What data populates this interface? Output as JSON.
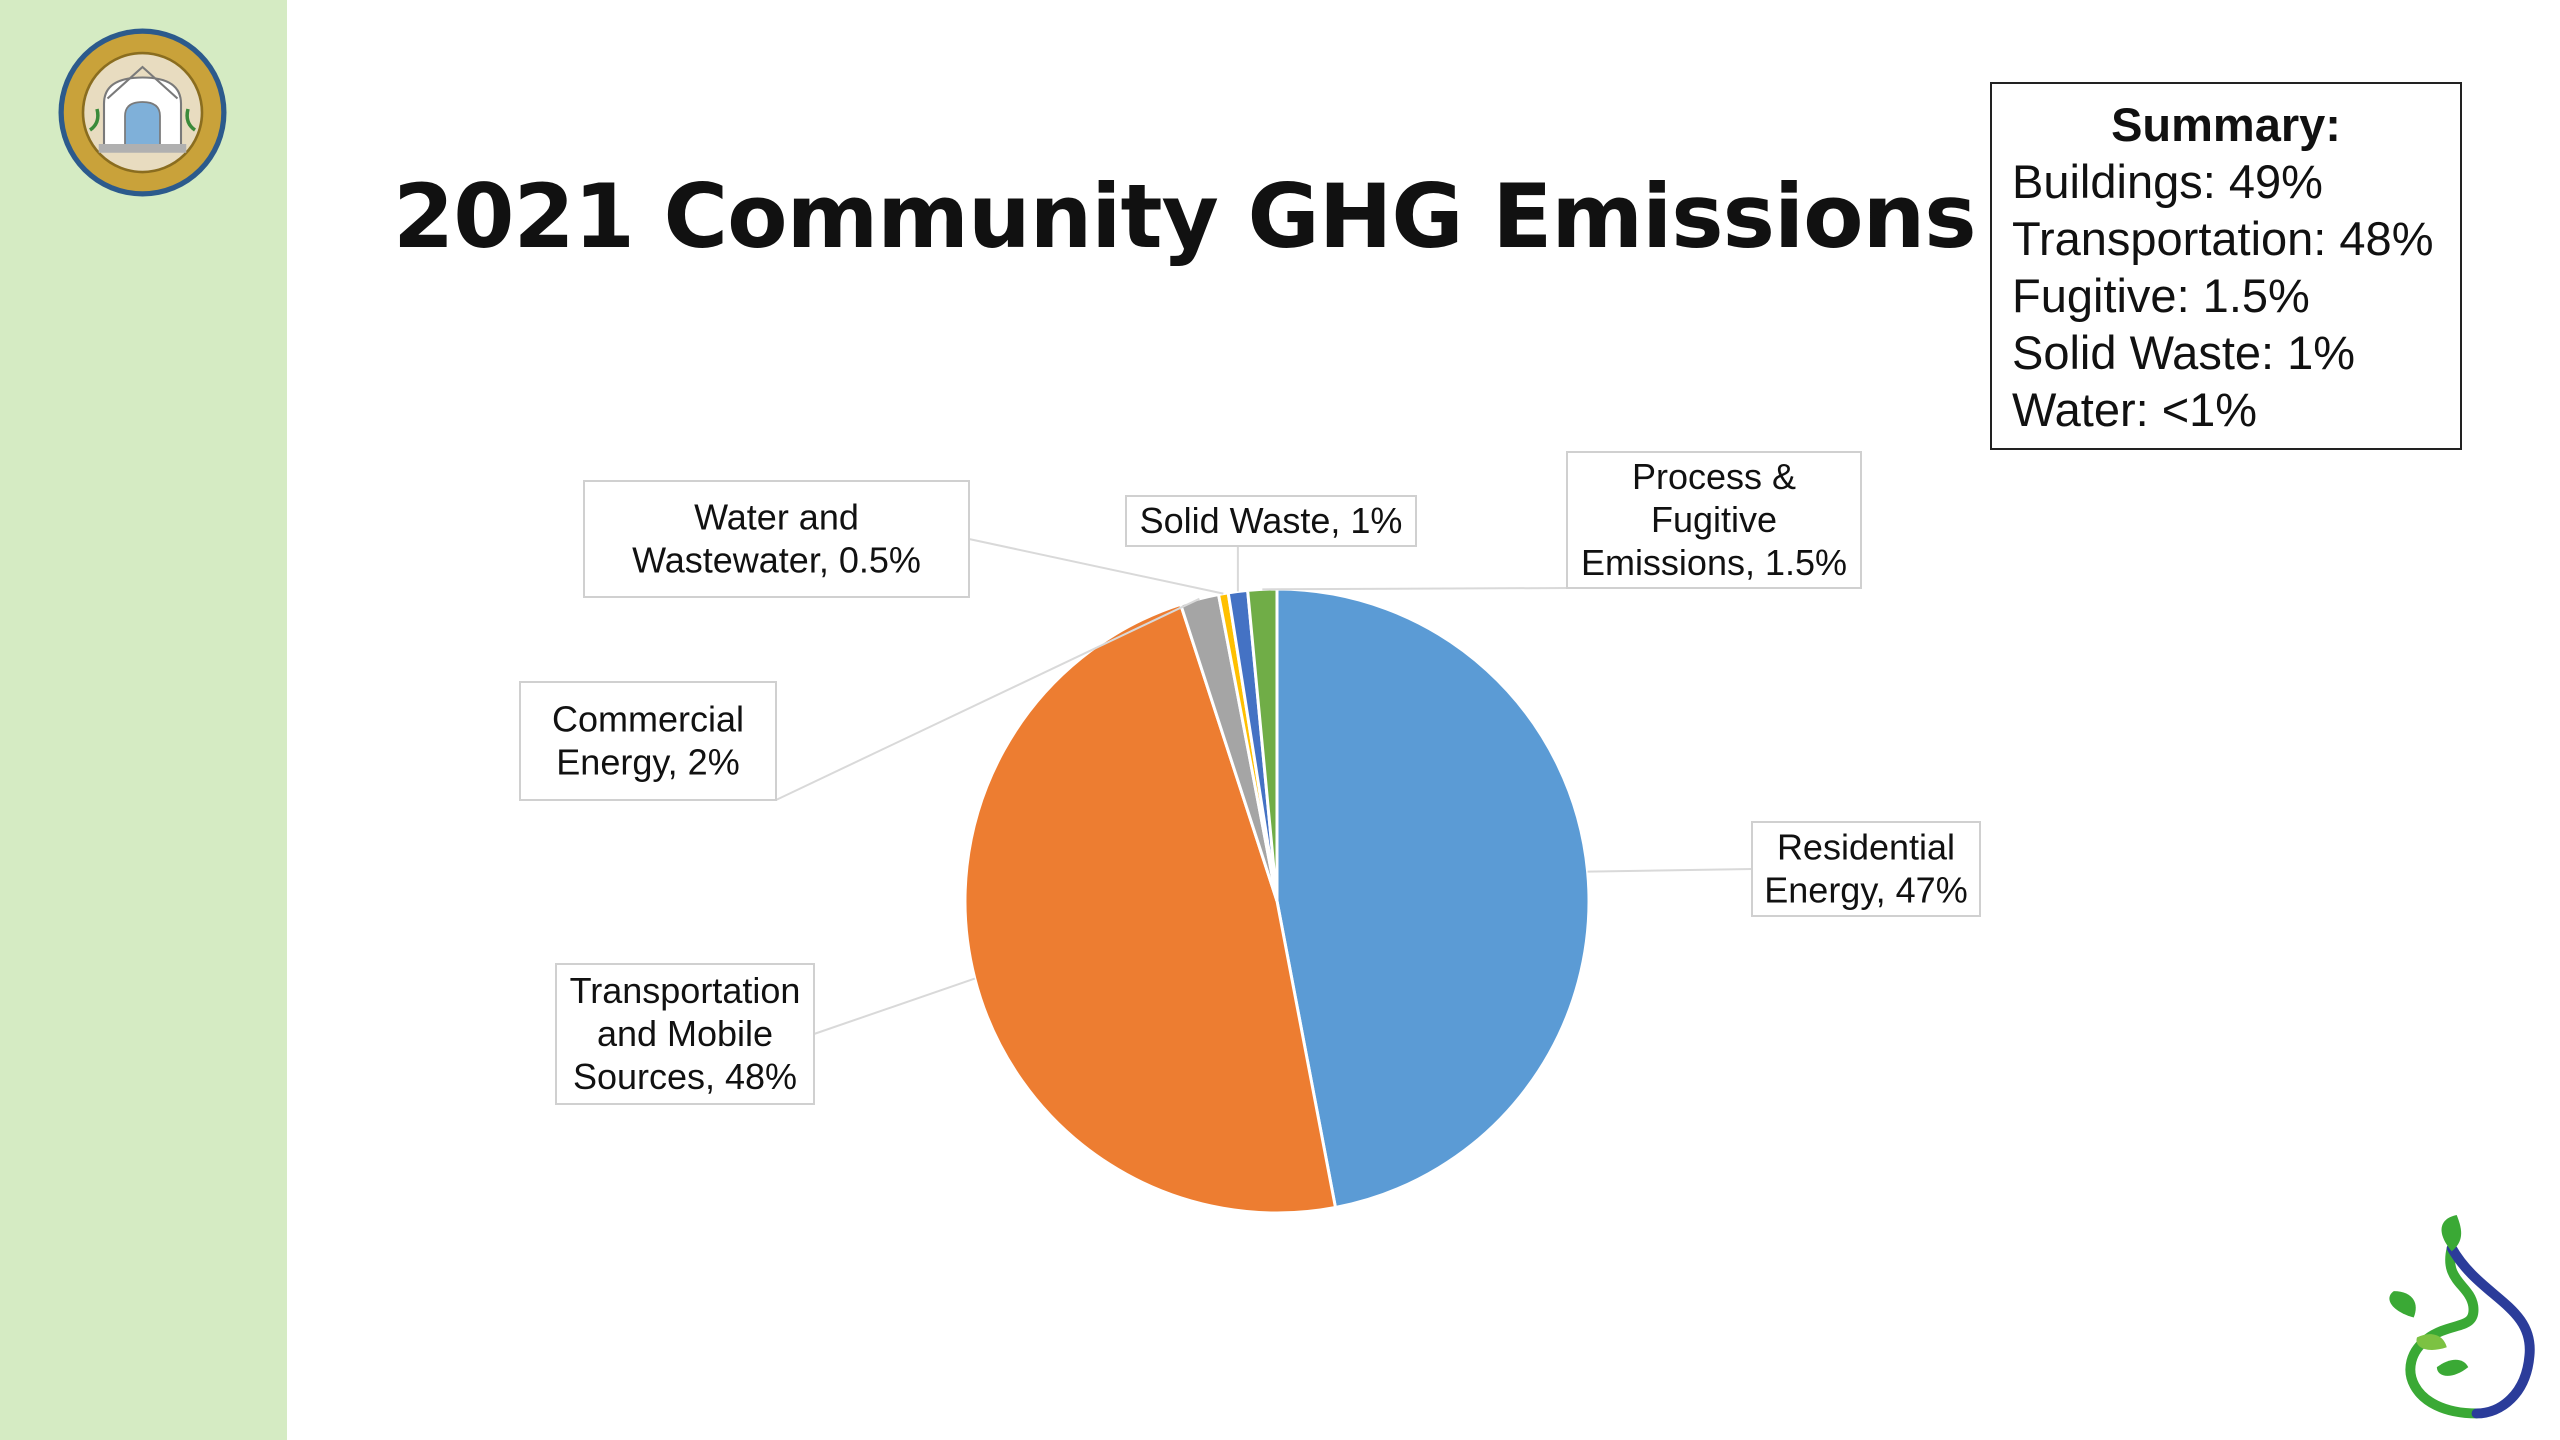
{
  "title": "2021 Community GHG Emissions",
  "summary": {
    "heading": "Summary:",
    "lines": [
      "Buildings: 49%",
      "Transportation: 48%",
      "Fugitive: 1.5%",
      "Solid Waste: 1%",
      "Water: <1%"
    ]
  },
  "chart_data": {
    "type": "pie",
    "title": "2021 Community GHG Emissions",
    "slices": [
      {
        "name": "Residential Energy",
        "value": 47,
        "label_lines": [
          "Residential",
          "Energy, 47%"
        ],
        "color": "#5b9bd5"
      },
      {
        "name": "Transportation and Mobile Sources",
        "value": 48,
        "label_lines": [
          "Transportation",
          "and Mobile",
          "Sources, 48%"
        ],
        "color": "#ed7d31"
      },
      {
        "name": "Commercial Energy",
        "value": 2,
        "label_lines": [
          "Commercial",
          "Energy, 2%"
        ],
        "color": "#a5a5a5"
      },
      {
        "name": "Water and Wastewater",
        "value": 0.5,
        "label_lines": [
          "Water and",
          "Wastewater, 0.5%"
        ],
        "color": "#ffc000"
      },
      {
        "name": "Solid Waste",
        "value": 1,
        "label_lines": [
          "Solid Waste, 1%"
        ],
        "color": "#4472c4"
      },
      {
        "name": "Process & Fugitive Emissions",
        "value": 1.5,
        "label_lines": [
          "Process &",
          "Fugitive",
          "Emissions, 1.5%"
        ],
        "color": "#70ad47"
      }
    ],
    "start_angle_deg": 0,
    "direction": "clockwise"
  },
  "colors": {
    "sidebar": "#d5ebc3",
    "seal_gold": "#c9a23a",
    "seal_blue": "#2c5a8c",
    "logo_green": "#3aa935",
    "logo_blue": "#2b3c9a"
  },
  "icons": {
    "seal": "city-seal-icon",
    "logo": "leaf-swirl-logo-icon"
  }
}
